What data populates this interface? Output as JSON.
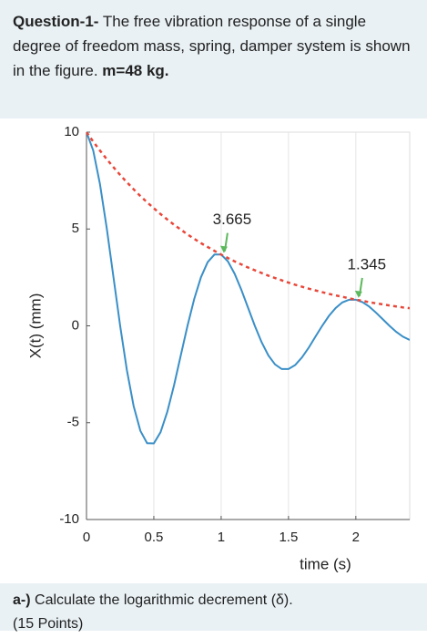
{
  "question": {
    "label": "Question-1-",
    "text": "The free vibration response of a single degree of freedom mass, spring, damper system is shown in the figure.",
    "mass": "m=48 kg."
  },
  "chart_data": {
    "type": "line",
    "xlabel": "time (s)",
    "ylabel": "X(t) (mm)",
    "x": [
      0,
      0.05,
      0.1,
      0.15,
      0.2,
      0.25,
      0.3,
      0.35,
      0.4,
      0.45,
      0.5,
      0.55,
      0.6,
      0.65,
      0.7,
      0.75,
      0.8,
      0.85,
      0.9,
      0.95,
      1,
      1.05,
      1.1,
      1.15,
      1.2,
      1.25,
      1.3,
      1.35,
      1.4,
      1.45,
      1.5,
      1.55,
      1.6,
      1.65,
      1.7,
      1.75,
      1.8,
      1.85,
      1.9,
      1.95,
      2,
      2.05,
      2.1,
      2.15,
      2.2,
      2.25,
      2.3,
      2.35,
      2.4
    ],
    "series": [
      {
        "color": "#3a8fc7",
        "dashed": false,
        "values": [
          10,
          9.05,
          7.32,
          5.06,
          2.53,
          0,
          -2.29,
          -4.14,
          -5.42,
          -6.06,
          -6.07,
          -5.49,
          -4.44,
          -3.07,
          -1.53,
          0,
          1.39,
          2.51,
          3.29,
          3.68,
          3.68,
          3.33,
          2.69,
          1.86,
          0.93,
          0,
          -0.84,
          -1.52,
          -1.99,
          -2.23,
          -2.23,
          -2.02,
          -1.63,
          -1.13,
          -0.56,
          0,
          0.51,
          0.92,
          1.21,
          1.35,
          1.35,
          1.22,
          0.99,
          0.68,
          0.34,
          0,
          -0.31,
          -0.56,
          -0.73
        ]
      },
      {
        "color": "#e8473a",
        "dashed": true,
        "values": [
          10,
          9.51,
          9.05,
          8.61,
          8.19,
          7.79,
          7.41,
          7.05,
          6.7,
          6.38,
          6.07,
          5.77,
          5.49,
          5.22,
          4.97,
          4.72,
          4.49,
          4.27,
          4.07,
          3.87,
          3.68,
          3.5,
          3.33,
          3.17,
          3.01,
          2.87,
          2.73,
          2.59,
          2.47,
          2.35,
          2.23,
          2.12,
          2.02,
          1.92,
          1.83,
          1.74,
          1.65,
          1.57,
          1.5,
          1.42,
          1.35,
          1.29,
          1.22,
          1.16,
          1.11,
          1.05,
          1.0,
          0.95,
          0.91
        ]
      }
    ],
    "annotations": [
      {
        "text": "3.665",
        "x": 1,
        "y": 3.665
      },
      {
        "text": "1.345",
        "x": 2,
        "y": 1.345
      }
    ],
    "annotation_color": "#5cb85c",
    "xlim": [
      0,
      2.4
    ],
    "ylim": [
      -10,
      10
    ],
    "xticks": [
      0,
      0.5,
      1,
      1.5,
      2
    ],
    "yticks": [
      -10,
      -5,
      0,
      5,
      10
    ],
    "grid": "x"
  },
  "part_a": {
    "label": "a-)",
    "text": "Calculate the logarithmic decrement (δ).",
    "points": "(15 Points)"
  }
}
